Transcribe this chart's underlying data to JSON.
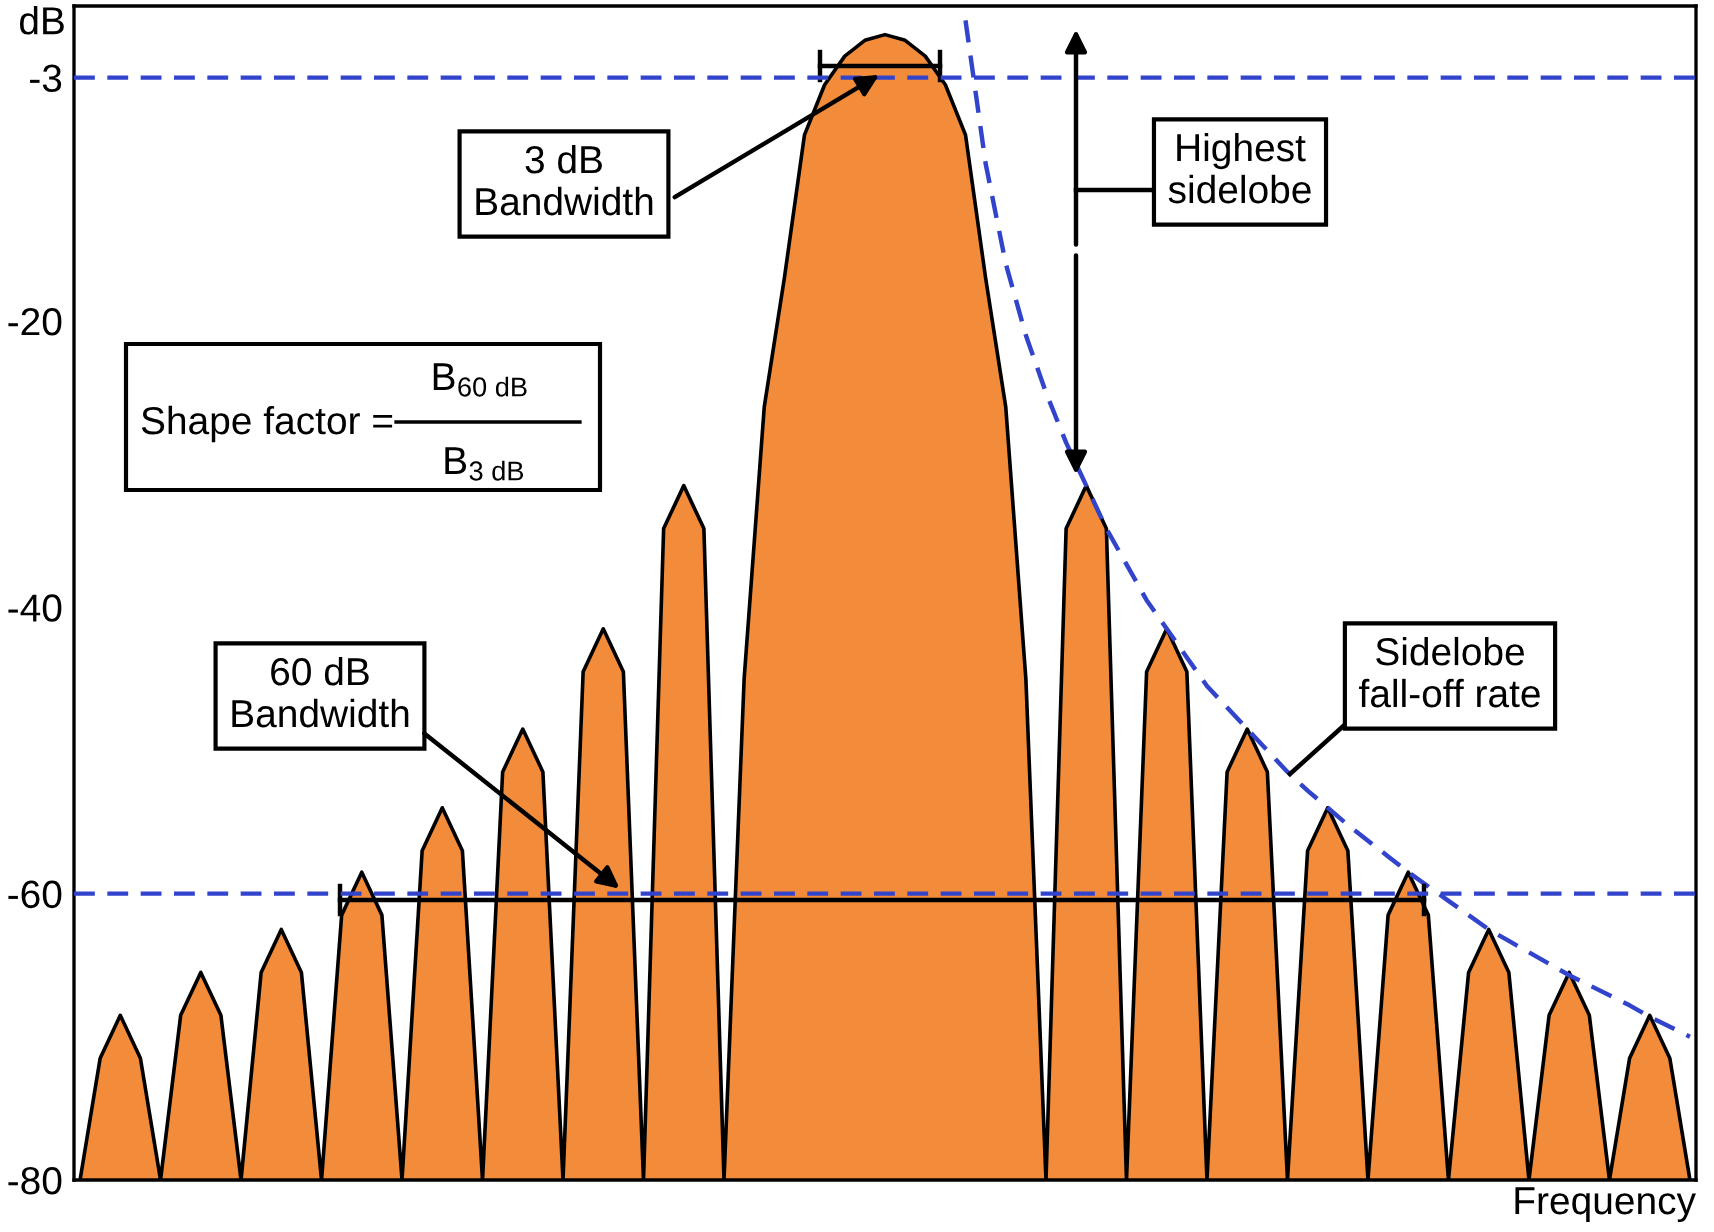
{
  "chart_data": {
    "type": "area",
    "categories": [
      null,
      null,
      null,
      null,
      null,
      null,
      null,
      null,
      null,
      null,
      null,
      null,
      null,
      null,
      null,
      null,
      null,
      null,
      null,
      null,
      null,
      null,
      null,
      null,
      null,
      null,
      null,
      null,
      null,
      null,
      null,
      null,
      null,
      null,
      null,
      null,
      null,
      null,
      null,
      null,
      null,
      null,
      null,
      null,
      null,
      null,
      null,
      null,
      null,
      null,
      null,
      null,
      null,
      null,
      null,
      null,
      null,
      null,
      null,
      null,
      null,
      null,
      null,
      null,
      null,
      null,
      null,
      null,
      null,
      null,
      null,
      null,
      null,
      null,
      null,
      null,
      null,
      null,
      null,
      null,
      null
    ],
    "series": [
      {
        "color": "#f28c3a",
        "values": [
          -80,
          -71.5,
          -68.5,
          -71.5,
          -80,
          -68.5,
          -65.5,
          -68.5,
          -80,
          -65.5,
          -62.5,
          -65.5,
          -80,
          -61.5,
          -58.5,
          -61.5,
          -80,
          -57,
          -54,
          -57,
          -80,
          -51.5,
          -48.5,
          -51.5,
          -80,
          -44.5,
          -41.5,
          -44.5,
          -80,
          -34.5,
          -31.5,
          -34.5,
          -80,
          -45,
          -26,
          -17,
          -7,
          -3.5,
          -1.5,
          -0.4,
          0,
          -0.4,
          -1.5,
          -3.5,
          -7,
          -17,
          -26,
          -45,
          -80,
          -34.5,
          -31.5,
          -34.5,
          -80,
          -44.5,
          -41.5,
          -44.5,
          -80,
          -51.5,
          -48.5,
          -51.5,
          -80,
          -57,
          -54,
          -57,
          -80,
          -61.5,
          -58.5,
          -61.5,
          -80,
          -65.5,
          -62.5,
          -65.5,
          -80,
          -68.5,
          -65.5,
          -68.5,
          -80,
          -71.5,
          -68.5,
          -71.5,
          -80
        ]
      },
      {
        "type": "line",
        "color": "#3344cc",
        "line_style": "dashed",
        "values": [
          null,
          null,
          null,
          null,
          null,
          null,
          null,
          null,
          null,
          null,
          null,
          null,
          null,
          null,
          null,
          null,
          null,
          null,
          null,
          null,
          null,
          null,
          null,
          null,
          null,
          null,
          null,
          null,
          null,
          null,
          null,
          null,
          null,
          null,
          null,
          null,
          null,
          null,
          null,
          null,
          null,
          null,
          null,
          null,
          1,
          -9,
          -16,
          -21,
          -25,
          -28.5,
          -31.5,
          -34.5,
          -37,
          -39.5,
          -41.5,
          -43.5,
          -45.5,
          -47,
          -48.5,
          -50,
          -51.5,
          -52.8,
          -54,
          -55.2,
          -56.3,
          -57.4,
          -58.5,
          -59.5,
          -60.5,
          -61.5,
          -62.5,
          -63.3,
          -64.1,
          -64.9,
          -65.7,
          -66.4,
          -67.1,
          -67.8,
          -68.6,
          -69.3,
          -70
        ]
      }
    ],
    "ylabel": "dB",
    "xlabel": "Frequency",
    "ylim": [
      -80,
      2
    ],
    "yticks": [
      -80,
      -60,
      -40,
      -20,
      -3
    ],
    "tick_labels": "y",
    "grid": false,
    "ref_lines": [
      {
        "axis": "y",
        "value": -3,
        "label": null,
        "color": "#3344cc",
        "line_style": "dashed"
      },
      {
        "axis": "y",
        "value": -60,
        "label": null,
        "color": "#3344cc",
        "line_style": "dashed"
      }
    ],
    "annotations": [
      "3 dB\nBandwidth",
      "Highest\nsidelobe",
      "Shape factor =",
      "B$_{60 dB}$",
      "B$_{3 dB}$",
      "60 dB\nBandwidth",
      "Sidelobe\nfall-off rate"
    ]
  }
}
